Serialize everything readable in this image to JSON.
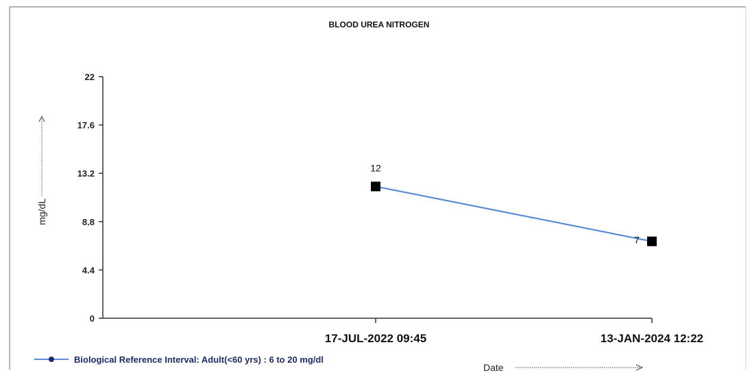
{
  "chart_data": {
    "type": "line",
    "title": "BLOOD UREA NITROGEN",
    "ylabel": "mg/dL",
    "xlabel": "Date",
    "ylim": [
      0,
      22
    ],
    "y_ticks": [
      "0",
      "4.4",
      "8.8",
      "13.2",
      "17.6",
      "22"
    ],
    "categories": [
      "17-JUL-2022 09:45",
      "13-JAN-2024 12:22"
    ],
    "series": [
      {
        "name": "Biological Reference Interval: Adult(<60 yrs) : 6 to 20 mg/dl",
        "values": [
          12,
          7
        ],
        "data_labels": [
          "12",
          "7"
        ]
      }
    ],
    "grid": false,
    "legend_position": "bottom-left",
    "colors": {
      "line": "#5b8bd9",
      "marker": "#000000",
      "legend_marker": "#1a2a6c"
    }
  }
}
